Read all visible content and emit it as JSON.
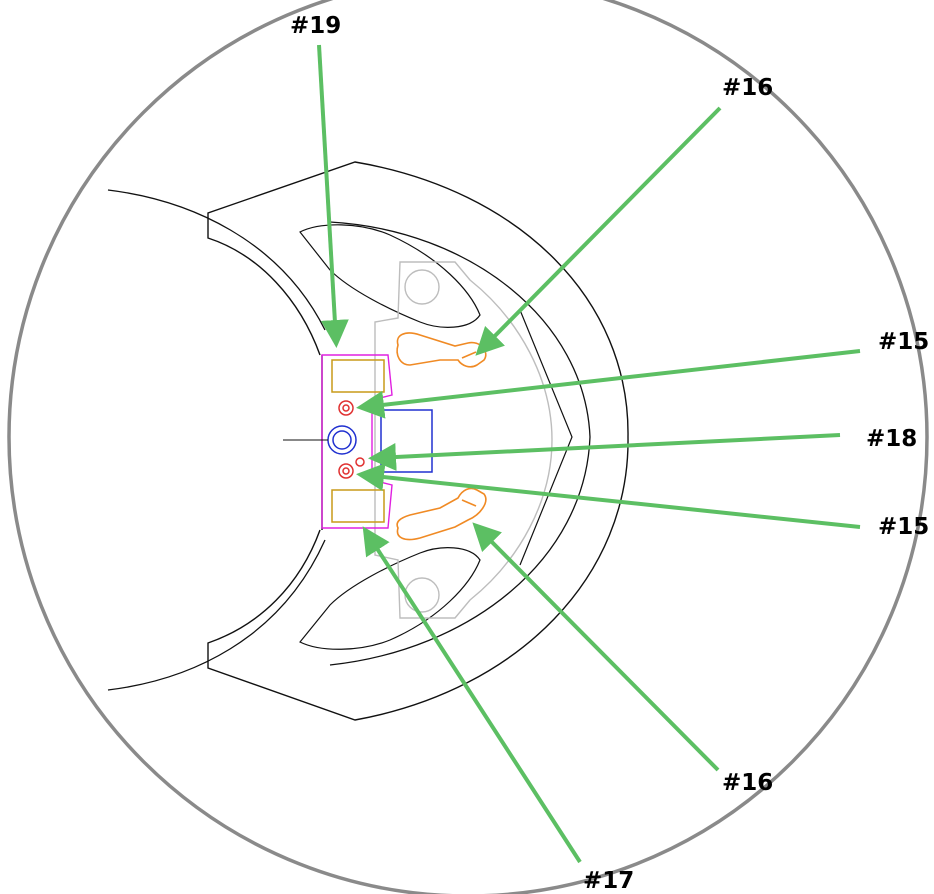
{
  "callouts": {
    "c19": "#19",
    "c16_top": "#16",
    "c15_top": "#15",
    "c18": "#18",
    "c15_bottom": "#15",
    "c16_bottom": "#16",
    "c17": "#17"
  },
  "colors": {
    "background": "#ffffff",
    "outer_circle": "#8a8a8a",
    "outline": "#111111",
    "faint_part": "#bdbdbd",
    "orange_terminals": "#f08a24",
    "magenta_holder": "#e020e0",
    "gold_blocks": "#c99a18",
    "red_holes": "#e03030",
    "blue_parts": "#2030d0",
    "arrows": "#5cbf63"
  }
}
